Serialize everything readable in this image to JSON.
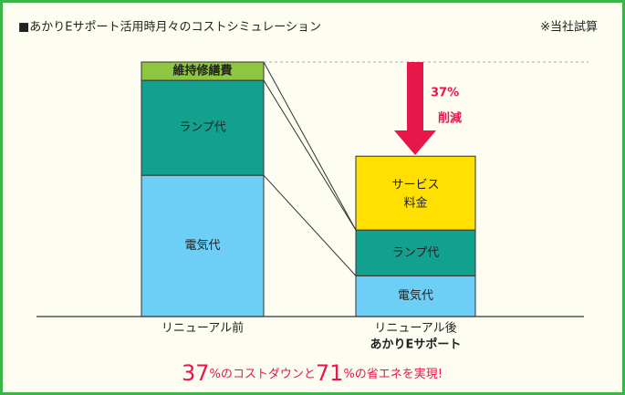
{
  "chart_data": {
    "type": "bar",
    "stacked": true,
    "title": "■あかりEサポート活用時月々のコストシミュレーション",
    "note": "※当社試算",
    "categories": [
      "リニューアル前",
      "リニューアル後"
    ],
    "category_sublabels": [
      null,
      "あかりEサポート"
    ],
    "series": [
      {
        "name": "電気代",
        "color": "#6dcff6",
        "values": [
          55.5,
          16
        ]
      },
      {
        "name": "ランプ代",
        "color": "#12a08f",
        "values": [
          37.3,
          18
        ]
      },
      {
        "name": "維持修繕費",
        "color": "#8dc63f",
        "values": [
          7.2,
          null
        ]
      },
      {
        "name": "サービス\n料金",
        "color": "#ffe000",
        "values": [
          null,
          29
        ]
      }
    ],
    "ylim": [
      0,
      100
    ],
    "annotations": {
      "reduction_value": "37%",
      "reduction_label": "削減"
    },
    "footer": [
      "37",
      "%のコストダウンと",
      "71",
      "%の省エネを実現!"
    ]
  }
}
